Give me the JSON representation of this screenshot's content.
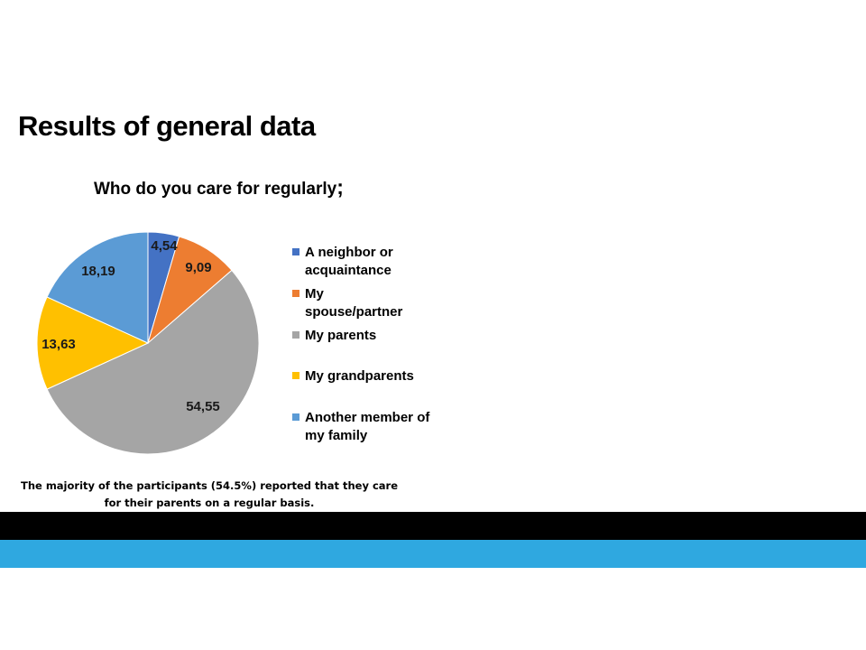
{
  "slide": {
    "title": "Results of general data",
    "caption": "The majority of the participants (54.5%) reported that they care for their parents on a regular basis."
  },
  "colors": {
    "neighbor": "#4472c4",
    "spouse": "#ed7d31",
    "parents": "#a5a5a5",
    "grandparents": "#ffc000",
    "family": "#5b9bd5",
    "bar_black": "#000000",
    "bar_blue": "#2fa8e0"
  },
  "chart_data": {
    "type": "pie",
    "title": "Who do you care for regularly",
    "title_suffix": ";",
    "legend_position": "right",
    "slices": [
      {
        "label": "A neighbor or acquaintance",
        "value": 4.54,
        "display": "4,54",
        "color": "#4472c4"
      },
      {
        "label": "My spouse/partner",
        "value": 9.09,
        "display": "9,09",
        "color": "#ed7d31"
      },
      {
        "label": "My parents",
        "value": 54.55,
        "display": "54,55",
        "color": "#a5a5a5"
      },
      {
        "label": "My grandparents",
        "value": 13.63,
        "display": "13,63",
        "color": "#ffc000"
      },
      {
        "label": "Another member of my family",
        "value": 18.19,
        "display": "18,19",
        "color": "#5b9bd5"
      }
    ]
  }
}
